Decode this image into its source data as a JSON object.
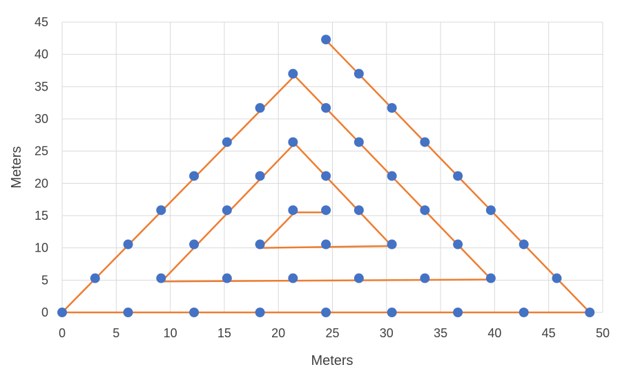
{
  "chart_data": {
    "type": "scatter",
    "title": "",
    "xlabel": "Meters",
    "ylabel": "Meters",
    "xlim": [
      0,
      50
    ],
    "ylim": [
      0,
      45
    ],
    "xticks": [
      "0",
      "5",
      "10",
      "15",
      "20",
      "25",
      "30",
      "35",
      "40",
      "45",
      "50"
    ],
    "yticks": [
      "0",
      "5",
      "10",
      "15",
      "20",
      "25",
      "30",
      "35",
      "40",
      "45"
    ],
    "grid": true,
    "legend": "none",
    "colors": {
      "points": "#4472C4",
      "path": "#ED7D31",
      "grid": "#d9d9d9",
      "text": "#404040"
    },
    "points": [
      [
        0,
        0
      ],
      [
        6.1,
        0
      ],
      [
        12.2,
        0
      ],
      [
        18.3,
        0
      ],
      [
        24.4,
        0
      ],
      [
        30.5,
        0
      ],
      [
        36.6,
        0
      ],
      [
        42.7,
        0
      ],
      [
        48.8,
        0
      ],
      [
        3.05,
        5.3
      ],
      [
        9.15,
        5.3
      ],
      [
        15.25,
        5.3
      ],
      [
        21.35,
        5.3
      ],
      [
        27.45,
        5.3
      ],
      [
        33.55,
        5.3
      ],
      [
        39.65,
        5.3
      ],
      [
        45.75,
        5.3
      ],
      [
        6.1,
        10.55
      ],
      [
        12.2,
        10.55
      ],
      [
        18.3,
        10.55
      ],
      [
        24.4,
        10.55
      ],
      [
        30.5,
        10.55
      ],
      [
        36.6,
        10.55
      ],
      [
        42.7,
        10.55
      ],
      [
        9.15,
        15.85
      ],
      [
        15.25,
        15.85
      ],
      [
        21.35,
        15.85
      ],
      [
        24.4,
        15.85
      ],
      [
        27.45,
        15.85
      ],
      [
        33.55,
        15.85
      ],
      [
        39.65,
        15.85
      ],
      [
        12.2,
        21.15
      ],
      [
        18.3,
        21.15
      ],
      [
        24.4,
        21.15
      ],
      [
        30.5,
        21.15
      ],
      [
        36.6,
        21.15
      ],
      [
        15.25,
        26.4
      ],
      [
        21.35,
        26.4
      ],
      [
        27.45,
        26.4
      ],
      [
        33.55,
        26.4
      ],
      [
        18.3,
        31.7
      ],
      [
        24.4,
        31.7
      ],
      [
        30.5,
        31.7
      ],
      [
        21.35,
        37.0
      ],
      [
        27.45,
        37.0
      ],
      [
        24.4,
        42.3
      ]
    ],
    "path": [
      [
        24.4,
        42.2
      ],
      [
        48.8,
        0
      ],
      [
        0,
        0
      ],
      [
        21.5,
        36.7
      ],
      [
        39.7,
        5.1
      ],
      [
        9.2,
        4.8
      ],
      [
        21.5,
        26.2
      ],
      [
        30.5,
        10.3
      ],
      [
        18.3,
        10.0
      ],
      [
        21.5,
        15.5
      ],
      [
        24.4,
        15.5
      ]
    ]
  }
}
